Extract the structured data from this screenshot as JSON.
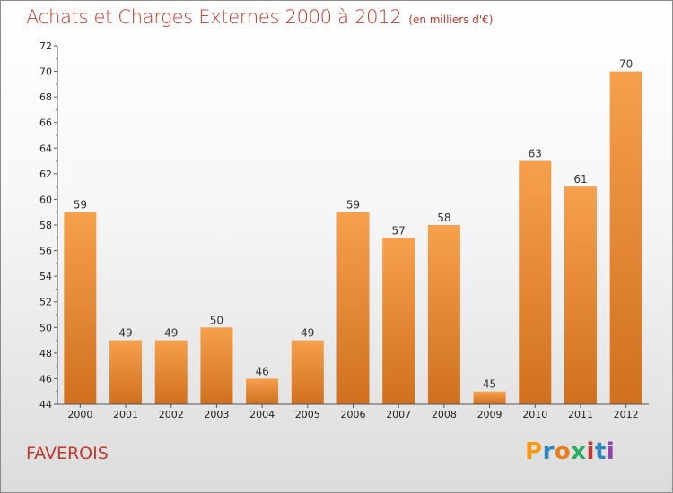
{
  "title": "Achats et Charges Externes 2000 à 2012",
  "unit_note": "(en milliers d'€)",
  "town": "FAVEROIS",
  "brand_letters": [
    "P",
    "r",
    "o",
    "x",
    "i",
    "t",
    "i"
  ],
  "brand_colors": [
    "#f39c12",
    "#2e86c1",
    "#e67e22",
    "#27ae60",
    "#c0392b",
    "#2e86c1",
    "#8e44ad"
  ],
  "chart_data": {
    "type": "bar",
    "categories": [
      "2000",
      "2001",
      "2002",
      "2003",
      "2004",
      "2005",
      "2006",
      "2007",
      "2008",
      "2009",
      "2010",
      "2011",
      "2012"
    ],
    "values": [
      59,
      49,
      49,
      50,
      46,
      49,
      59,
      57,
      58,
      45,
      63,
      61,
      70
    ],
    "ylim": [
      44,
      72
    ],
    "yticks": [
      44,
      46,
      48,
      50,
      52,
      54,
      56,
      58,
      60,
      62,
      64,
      66,
      68,
      70,
      72
    ],
    "grid": false,
    "bar_color_top": "#f6a04d",
    "bar_color_bottom": "#d0701f",
    "title_color": "#c0392b"
  }
}
